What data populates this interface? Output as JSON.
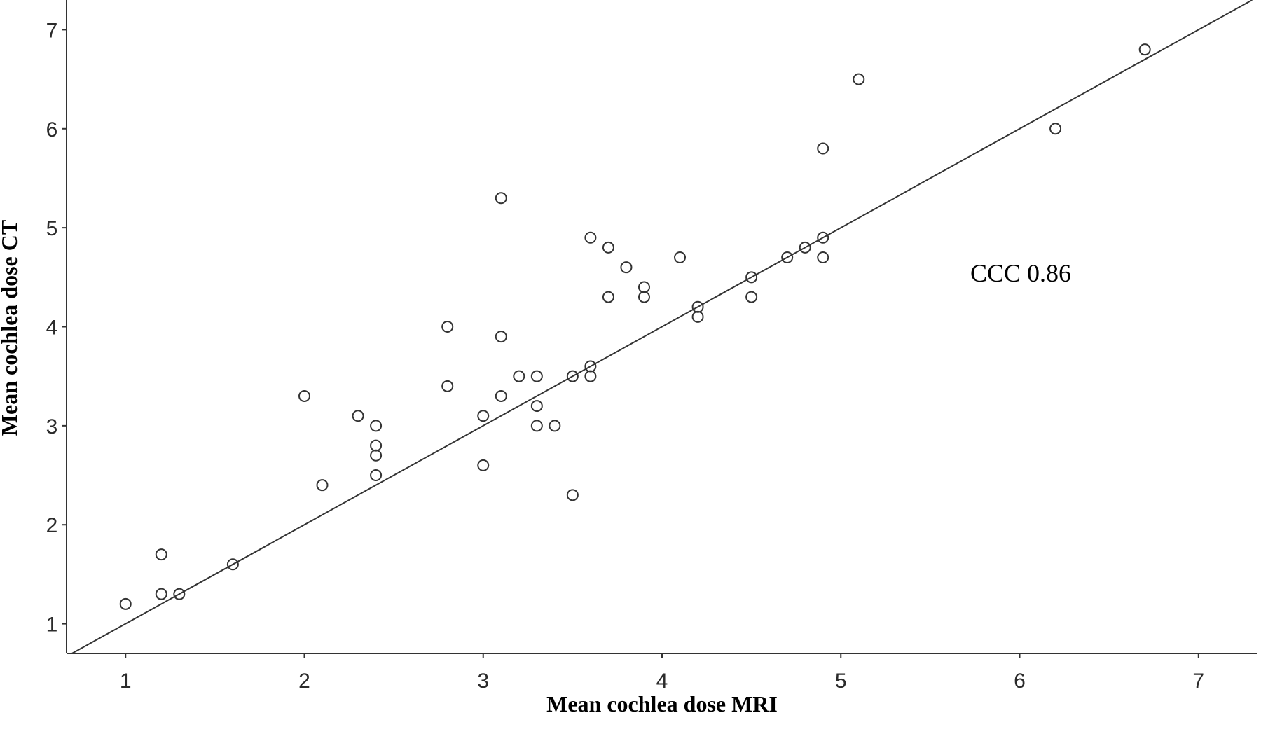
{
  "chart_data": {
    "type": "scatter",
    "title": "",
    "xlabel": "Mean cochlea dose MRI",
    "ylabel": "Mean cochlea dose CT",
    "xlim": [
      0.67,
      7.33
    ],
    "ylim": [
      0.7,
      7.3
    ],
    "xticks": [
      "1",
      "2",
      "3",
      "4",
      "5",
      "6",
      "7"
    ],
    "yticks": [
      "1",
      "2",
      "3",
      "4",
      "5",
      "6",
      "7"
    ],
    "grid": false,
    "annotation": "CCC 0.86",
    "reference_line": {
      "slope": 1,
      "intercept": 0
    },
    "marker": "open-circle",
    "color": "#333333",
    "points": [
      {
        "x": 1.0,
        "y": 1.2
      },
      {
        "x": 1.2,
        "y": 1.7
      },
      {
        "x": 1.2,
        "y": 1.3
      },
      {
        "x": 1.3,
        "y": 1.3
      },
      {
        "x": 1.6,
        "y": 1.6
      },
      {
        "x": 2.0,
        "y": 3.3
      },
      {
        "x": 2.1,
        "y": 2.4
      },
      {
        "x": 2.3,
        "y": 3.1
      },
      {
        "x": 2.4,
        "y": 3.0
      },
      {
        "x": 2.4,
        "y": 2.8
      },
      {
        "x": 2.4,
        "y": 2.7
      },
      {
        "x": 2.4,
        "y": 2.5
      },
      {
        "x": 2.8,
        "y": 4.0
      },
      {
        "x": 2.8,
        "y": 3.4
      },
      {
        "x": 3.0,
        "y": 3.1
      },
      {
        "x": 3.0,
        "y": 2.6
      },
      {
        "x": 3.1,
        "y": 5.3
      },
      {
        "x": 3.1,
        "y": 3.9
      },
      {
        "x": 3.1,
        "y": 3.3
      },
      {
        "x": 3.2,
        "y": 3.5
      },
      {
        "x": 3.3,
        "y": 3.5
      },
      {
        "x": 3.3,
        "y": 3.2
      },
      {
        "x": 3.3,
        "y": 3.0
      },
      {
        "x": 3.4,
        "y": 3.0
      },
      {
        "x": 3.5,
        "y": 3.5
      },
      {
        "x": 3.5,
        "y": 2.3
      },
      {
        "x": 3.6,
        "y": 4.9
      },
      {
        "x": 3.6,
        "y": 3.6
      },
      {
        "x": 3.6,
        "y": 3.5
      },
      {
        "x": 3.7,
        "y": 4.8
      },
      {
        "x": 3.7,
        "y": 4.3
      },
      {
        "x": 3.8,
        "y": 4.6
      },
      {
        "x": 3.9,
        "y": 4.4
      },
      {
        "x": 3.9,
        "y": 4.3
      },
      {
        "x": 4.1,
        "y": 4.7
      },
      {
        "x": 4.2,
        "y": 4.2
      },
      {
        "x": 4.2,
        "y": 4.1
      },
      {
        "x": 4.5,
        "y": 4.5
      },
      {
        "x": 4.5,
        "y": 4.3
      },
      {
        "x": 4.7,
        "y": 4.7
      },
      {
        "x": 4.8,
        "y": 4.8
      },
      {
        "x": 4.9,
        "y": 5.8
      },
      {
        "x": 4.9,
        "y": 4.9
      },
      {
        "x": 4.9,
        "y": 4.7
      },
      {
        "x": 5.1,
        "y": 6.5
      },
      {
        "x": 6.2,
        "y": 6.0
      },
      {
        "x": 6.7,
        "y": 6.8
      }
    ]
  }
}
